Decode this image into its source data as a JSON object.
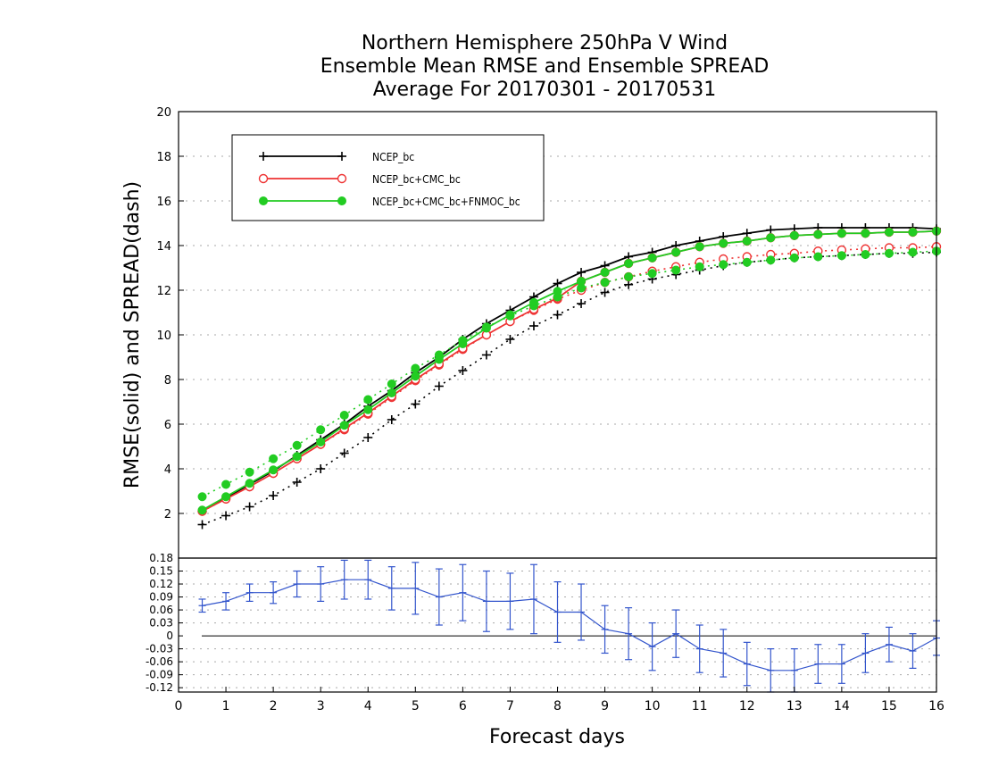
{
  "title": {
    "line1": "Northern Hemisphere 250hPa V Wind",
    "line2": "Ensemble Mean RMSE and Ensemble SPREAD",
    "line3": "Average For 20170301 - 20170531"
  },
  "chart_data": [
    {
      "type": "line",
      "ylabel": "RMSE(solid) and SPREAD(dash)",
      "xlim": [
        0,
        16
      ],
      "ylim": [
        0,
        20
      ],
      "yticks": [
        2,
        4,
        6,
        8,
        10,
        12,
        14,
        16,
        18,
        20
      ],
      "grid": true,
      "legend_position": "top-left",
      "x": [
        0.5,
        1,
        1.5,
        2,
        2.5,
        3,
        3.5,
        4,
        4.5,
        5,
        5.5,
        6,
        6.5,
        7,
        7.5,
        8,
        8.5,
        9,
        9.5,
        10,
        10.5,
        11,
        11.5,
        12,
        12.5,
        13,
        13.5,
        14,
        14.5,
        15,
        15.5,
        16
      ],
      "series": [
        {
          "name": "NCEP_bc",
          "color": "#000000",
          "marker": "plus",
          "rmse": [
            2.1,
            2.7,
            3.3,
            3.9,
            4.6,
            5.3,
            6.0,
            6.8,
            7.5,
            8.3,
            9.0,
            9.8,
            10.5,
            11.1,
            11.7,
            12.3,
            12.8,
            13.1,
            13.5,
            13.7,
            14.0,
            14.2,
            14.4,
            14.55,
            14.7,
            14.75,
            14.8,
            14.8,
            14.8,
            14.8,
            14.8,
            14.75
          ],
          "spread": [
            1.5,
            1.9,
            2.3,
            2.8,
            3.4,
            4.0,
            4.7,
            5.4,
            6.2,
            6.9,
            7.7,
            8.4,
            9.1,
            9.8,
            10.4,
            10.9,
            11.4,
            11.9,
            12.25,
            12.5,
            12.7,
            12.9,
            13.1,
            13.25,
            13.35,
            13.45,
            13.5,
            13.55,
            13.6,
            13.65,
            13.65,
            13.7
          ]
        },
        {
          "name": "NCEP_bc+CMC_bc",
          "color": "#ee3333",
          "marker": "open-circle",
          "rmse": [
            2.1,
            2.65,
            3.2,
            3.8,
            4.45,
            5.1,
            5.8,
            6.5,
            7.25,
            8.0,
            8.7,
            9.4,
            10.0,
            10.6,
            11.15,
            11.65,
            12.4,
            12.8,
            13.2,
            13.45,
            13.7,
            13.95,
            14.1,
            14.2,
            14.35,
            14.45,
            14.5,
            14.55,
            14.55,
            14.6,
            14.6,
            14.65
          ],
          "spread": [
            2.1,
            2.65,
            3.2,
            3.8,
            4.45,
            5.1,
            5.75,
            6.45,
            7.2,
            7.95,
            8.65,
            9.35,
            10.0,
            10.6,
            11.1,
            11.6,
            12.0,
            12.35,
            12.6,
            12.85,
            13.05,
            13.25,
            13.4,
            13.5,
            13.6,
            13.65,
            13.75,
            13.8,
            13.85,
            13.9,
            13.9,
            13.95
          ]
        },
        {
          "name": "NCEP_bc+CMC_bc+FNMOC_bc",
          "color": "#22cc22",
          "marker": "filled-circle",
          "rmse": [
            2.15,
            2.75,
            3.35,
            3.95,
            4.55,
            5.2,
            5.95,
            6.65,
            7.4,
            8.15,
            8.9,
            9.6,
            10.3,
            10.9,
            11.45,
            11.95,
            12.4,
            12.8,
            13.2,
            13.45,
            13.7,
            13.95,
            14.1,
            14.2,
            14.35,
            14.45,
            14.5,
            14.55,
            14.55,
            14.6,
            14.6,
            14.65
          ],
          "spread": [
            2.75,
            3.3,
            3.85,
            4.45,
            5.05,
            5.75,
            6.4,
            7.1,
            7.8,
            8.5,
            9.1,
            9.75,
            10.35,
            10.85,
            11.3,
            11.7,
            12.1,
            12.35,
            12.6,
            12.75,
            12.9,
            13.05,
            13.15,
            13.25,
            13.35,
            13.45,
            13.5,
            13.55,
            13.6,
            13.65,
            13.7,
            13.75
          ]
        }
      ]
    },
    {
      "type": "line",
      "xlabel": "Forecast days",
      "xlim": [
        0,
        16
      ],
      "xticks": [
        0,
        1,
        2,
        3,
        4,
        5,
        6,
        7,
        8,
        9,
        10,
        11,
        12,
        13,
        14,
        15,
        16
      ],
      "ylim": [
        -0.13,
        0.18
      ],
      "ytick_labels": [
        "0.18",
        "0.15",
        "0.12",
        "0.09",
        "0.06",
        "0.03",
        "0",
        "-0.03",
        "-0.06",
        "-0.09",
        "-0.12"
      ],
      "grid": true,
      "color": "#3355cc",
      "x": [
        0.5,
        1,
        1.5,
        2,
        2.5,
        3,
        3.5,
        4,
        4.5,
        5,
        5.5,
        6,
        6.5,
        7,
        7.5,
        8,
        8.5,
        9,
        9.5,
        10,
        10.5,
        11,
        11.5,
        12,
        12.5,
        13,
        13.5,
        14,
        14.5,
        15,
        15.5,
        16
      ],
      "values": [
        0.07,
        0.08,
        0.1,
        0.1,
        0.12,
        0.12,
        0.13,
        0.13,
        0.11,
        0.11,
        0.09,
        0.1,
        0.08,
        0.08,
        0.085,
        0.055,
        0.055,
        0.015,
        0.005,
        -0.025,
        0.005,
        -0.03,
        -0.04,
        -0.065,
        -0.08,
        -0.08,
        -0.065,
        -0.065,
        -0.04,
        -0.02,
        -0.035,
        -0.005
      ],
      "error": [
        0.015,
        0.02,
        0.02,
        0.025,
        0.03,
        0.04,
        0.045,
        0.045,
        0.05,
        0.06,
        0.065,
        0.065,
        0.07,
        0.065,
        0.08,
        0.07,
        0.065,
        0.055,
        0.06,
        0.055,
        0.055,
        0.055,
        0.055,
        0.05,
        0.05,
        0.05,
        0.045,
        0.045,
        0.045,
        0.04,
        0.04,
        0.04
      ]
    }
  ]
}
